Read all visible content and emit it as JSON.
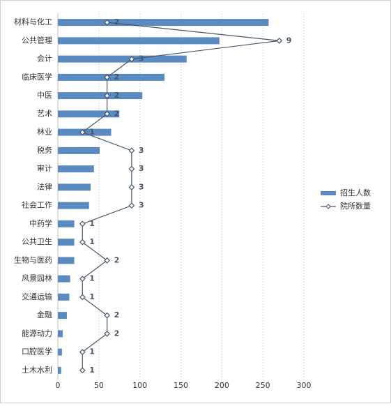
{
  "chart_data": {
    "type": "bar-line",
    "categories": [
      "材料与化工",
      "公共管理",
      "会计",
      "临床医学",
      "中医",
      "艺术",
      "林业",
      "税务",
      "审计",
      "法律",
      "社会工作",
      "中药学",
      "公共卫生",
      "生物与医药",
      "风景园林",
      "交通运输",
      "金融",
      "能源动力",
      "口腔医学",
      "土木水利"
    ],
    "series": [
      {
        "name": "招生人数",
        "color": "#5a8bc0",
        "values": [
          257,
          197,
          157,
          130,
          103,
          75,
          65,
          51,
          44,
          40,
          38,
          20,
          20,
          20,
          15,
          14,
          11,
          6,
          5,
          4
        ]
      },
      {
        "name": "院所数量",
        "color": "#44546a",
        "axis": "x2",
        "values": [
          2,
          9,
          3,
          2,
          2,
          2,
          1,
          3,
          3,
          3,
          3,
          1,
          1,
          2,
          1,
          1,
          2,
          2,
          1,
          1
        ]
      }
    ],
    "xlim": [
      0,
      300
    ],
    "xticks": [
      0,
      50,
      100,
      150,
      200,
      250,
      300
    ],
    "x2lim": [
      0,
      10
    ],
    "grid": true,
    "legend": "right"
  }
}
